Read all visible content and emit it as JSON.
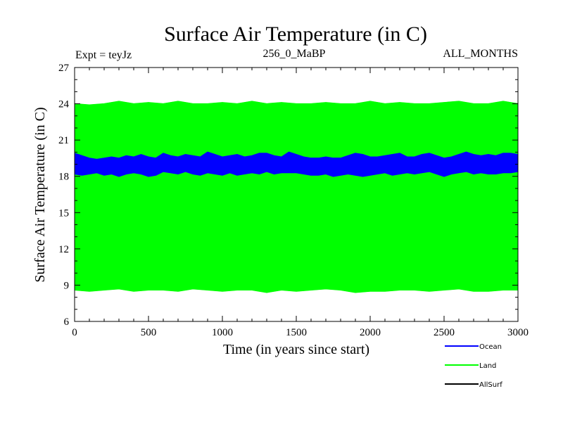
{
  "chart_data": {
    "type": "line",
    "title": "Surface Air Temperature (in C)",
    "subtitle_left": "Expt = teyJz",
    "subtitle_center": "256_0_MaBP",
    "subtitle_right": "ALL_MONTHS",
    "xlabel": "Time (in years since start)",
    "ylabel": "Surface Air Temperature (in C)",
    "xlim": [
      0,
      3000
    ],
    "ylim": [
      6,
      27
    ],
    "x_ticks": [
      0,
      500,
      1000,
      1500,
      2000,
      2500,
      3000
    ],
    "y_ticks": [
      6,
      9,
      12,
      15,
      18,
      21,
      24,
      27
    ],
    "grid": false,
    "legend_position": "bottom-right",
    "series": [
      {
        "name": "Land",
        "color": "#00ff00",
        "x": [
          0,
          100,
          200,
          300,
          400,
          500,
          600,
          700,
          800,
          900,
          1000,
          1100,
          1200,
          1300,
          1400,
          1500,
          1600,
          1700,
          1800,
          1900,
          2000,
          2100,
          2200,
          2300,
          2400,
          2500,
          2600,
          2700,
          2800,
          2900,
          3000
        ],
        "upper": [
          24.0,
          23.9,
          24.0,
          24.2,
          24.0,
          24.1,
          24.0,
          24.2,
          24.0,
          24.0,
          24.1,
          24.0,
          24.2,
          24.0,
          24.1,
          24.0,
          24.0,
          24.1,
          24.0,
          24.0,
          24.2,
          24.0,
          24.1,
          24.0,
          24.0,
          24.1,
          24.2,
          24.0,
          24.0,
          24.2,
          24.0
        ],
        "lower": [
          8.6,
          8.5,
          8.6,
          8.7,
          8.5,
          8.6,
          8.6,
          8.5,
          8.7,
          8.6,
          8.5,
          8.6,
          8.6,
          8.4,
          8.6,
          8.5,
          8.6,
          8.7,
          8.6,
          8.4,
          8.5,
          8.5,
          8.6,
          8.6,
          8.5,
          8.6,
          8.7,
          8.5,
          8.5,
          8.6,
          8.6
        ]
      },
      {
        "name": "Ocean",
        "color": "#0000ff",
        "x": [
          0,
          50,
          100,
          150,
          200,
          250,
          300,
          350,
          400,
          450,
          500,
          550,
          600,
          650,
          700,
          750,
          800,
          850,
          900,
          950,
          1000,
          1050,
          1100,
          1150,
          1200,
          1250,
          1300,
          1350,
          1400,
          1450,
          1500,
          1550,
          1600,
          1650,
          1700,
          1750,
          1800,
          1850,
          1900,
          1950,
          2000,
          2050,
          2100,
          2150,
          2200,
          2250,
          2300,
          2350,
          2400,
          2450,
          2500,
          2550,
          2600,
          2650,
          2700,
          2750,
          2800,
          2850,
          2900,
          2950,
          3000
        ],
        "upper": [
          19.9,
          19.7,
          19.5,
          19.4,
          19.5,
          19.6,
          19.5,
          19.7,
          19.6,
          19.8,
          19.6,
          19.5,
          19.9,
          19.7,
          19.6,
          19.8,
          19.7,
          19.6,
          20.0,
          19.8,
          19.6,
          19.7,
          19.8,
          19.6,
          19.7,
          19.9,
          19.9,
          19.7,
          19.6,
          20.0,
          19.8,
          19.6,
          19.5,
          19.5,
          19.6,
          19.5,
          19.5,
          19.7,
          19.9,
          19.8,
          19.6,
          19.6,
          19.7,
          19.8,
          19.9,
          19.6,
          19.6,
          19.8,
          19.9,
          19.7,
          19.5,
          19.6,
          19.8,
          20.0,
          19.8,
          19.7,
          19.8,
          19.7,
          19.9,
          19.9,
          19.8
        ],
        "lower": [
          18.2,
          18.1,
          18.2,
          18.3,
          18.1,
          18.2,
          18.0,
          18.2,
          18.3,
          18.2,
          18.0,
          18.1,
          18.4,
          18.3,
          18.2,
          18.4,
          18.2,
          18.1,
          18.3,
          18.2,
          18.1,
          18.3,
          18.1,
          18.2,
          18.3,
          18.2,
          18.4,
          18.2,
          18.3,
          18.3,
          18.3,
          18.2,
          18.1,
          18.1,
          18.2,
          18.0,
          18.1,
          18.2,
          18.1,
          18.0,
          18.1,
          18.2,
          18.3,
          18.1,
          18.2,
          18.3,
          18.2,
          18.3,
          18.4,
          18.2,
          18.0,
          18.2,
          18.3,
          18.4,
          18.2,
          18.3,
          18.2,
          18.2,
          18.3,
          18.3,
          18.4
        ]
      },
      {
        "name": "AllSurf",
        "color": "#000000",
        "x": [],
        "upper": [],
        "lower": []
      }
    ]
  }
}
